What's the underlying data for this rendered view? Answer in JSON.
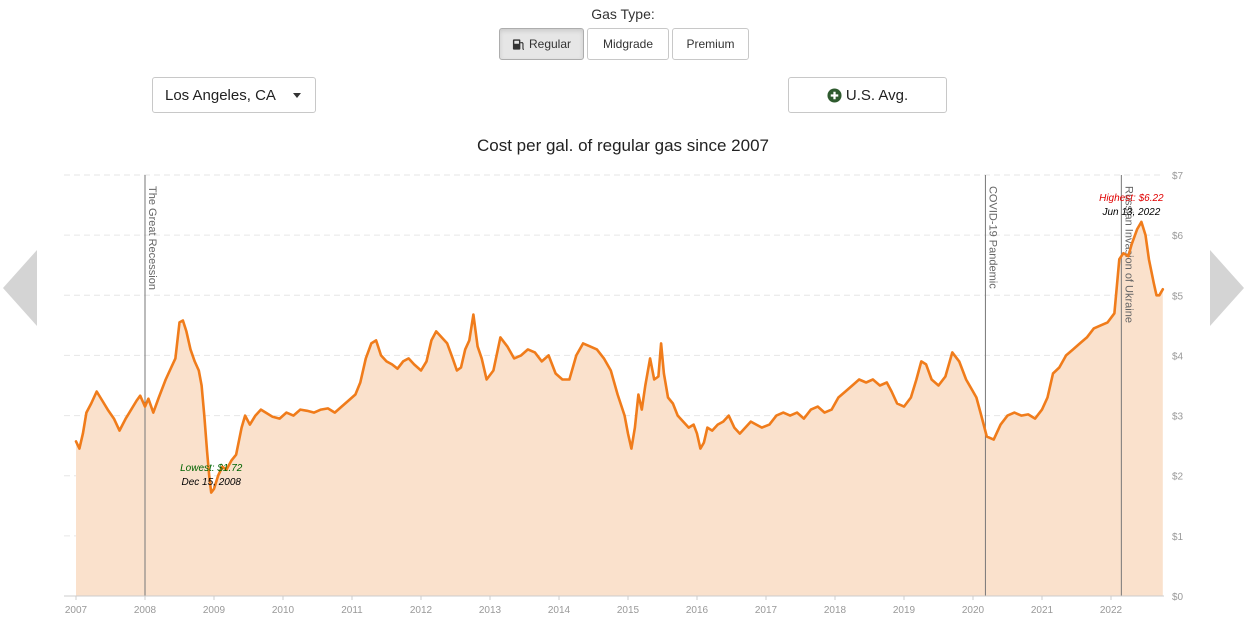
{
  "gas_type": {
    "label": "Gas Type:",
    "options": [
      "Regular",
      "Midgrade",
      "Premium"
    ],
    "selected": "Regular"
  },
  "location": {
    "selected": "Los Angeles, CA"
  },
  "compare_button": {
    "label": "U.S. Avg."
  },
  "icons": {
    "fuel": "gas-pump-icon",
    "plus": "plus-circle-icon",
    "prev": "arrow-left-icon",
    "next": "arrow-right-icon"
  },
  "colors": {
    "line": "#f07c1b",
    "fill": "#fae1cc",
    "highest": "#e00000",
    "lowest": "#006400",
    "plus_icon": "#2e5a2e"
  },
  "chart_data": {
    "type": "area",
    "title": "Cost per gal. of regular gas since 2007",
    "x_ticks": [
      "2007",
      "2008",
      "2009",
      "2010",
      "2011",
      "2012",
      "2013",
      "2014",
      "2015",
      "2016",
      "2017",
      "2018",
      "2019",
      "2020",
      "2021",
      "2022"
    ],
    "y_ticks": [
      "$0",
      "$1",
      "$2",
      "$3",
      "$4",
      "$5",
      "$6",
      "$7"
    ],
    "ylim": [
      0,
      7
    ],
    "xlim": [
      2007.0,
      2022.8
    ],
    "grid": true,
    "series": [
      {
        "points": [
          [
            2007.0,
            2.57
          ],
          [
            2007.05,
            2.45
          ],
          [
            2007.1,
            2.7
          ],
          [
            2007.15,
            3.05
          ],
          [
            2007.22,
            3.2
          ],
          [
            2007.3,
            3.4
          ],
          [
            2007.38,
            3.25
          ],
          [
            2007.46,
            3.1
          ],
          [
            2007.55,
            2.95
          ],
          [
            2007.63,
            2.75
          ],
          [
            2007.72,
            2.95
          ],
          [
            2007.8,
            3.1
          ],
          [
            2007.88,
            3.25
          ],
          [
            2007.93,
            3.33
          ],
          [
            2008.0,
            3.15
          ],
          [
            2008.05,
            3.28
          ],
          [
            2008.12,
            3.05
          ],
          [
            2008.2,
            3.3
          ],
          [
            2008.3,
            3.6
          ],
          [
            2008.38,
            3.8
          ],
          [
            2008.44,
            3.95
          ],
          [
            2008.5,
            4.55
          ],
          [
            2008.55,
            4.58
          ],
          [
            2008.6,
            4.4
          ],
          [
            2008.66,
            4.1
          ],
          [
            2008.72,
            3.9
          ],
          [
            2008.78,
            3.75
          ],
          [
            2008.82,
            3.5
          ],
          [
            2008.86,
            3.0
          ],
          [
            2008.9,
            2.4
          ],
          [
            2008.93,
            2.0
          ],
          [
            2008.96,
            1.72
          ],
          [
            2009.0,
            1.78
          ],
          [
            2009.06,
            2.0
          ],
          [
            2009.12,
            2.15
          ],
          [
            2009.18,
            2.1
          ],
          [
            2009.25,
            2.25
          ],
          [
            2009.32,
            2.35
          ],
          [
            2009.4,
            2.8
          ],
          [
            2009.45,
            3.0
          ],
          [
            2009.52,
            2.85
          ],
          [
            2009.6,
            3.0
          ],
          [
            2009.68,
            3.1
          ],
          [
            2009.75,
            3.05
          ],
          [
            2009.85,
            2.98
          ],
          [
            2009.95,
            2.95
          ],
          [
            2010.05,
            3.05
          ],
          [
            2010.15,
            3.0
          ],
          [
            2010.25,
            3.1
          ],
          [
            2010.35,
            3.08
          ],
          [
            2010.45,
            3.05
          ],
          [
            2010.55,
            3.1
          ],
          [
            2010.65,
            3.12
          ],
          [
            2010.75,
            3.05
          ],
          [
            2010.85,
            3.15
          ],
          [
            2010.95,
            3.25
          ],
          [
            2011.05,
            3.35
          ],
          [
            2011.12,
            3.55
          ],
          [
            2011.2,
            3.95
          ],
          [
            2011.28,
            4.2
          ],
          [
            2011.35,
            4.25
          ],
          [
            2011.42,
            4.0
          ],
          [
            2011.5,
            3.9
          ],
          [
            2011.58,
            3.85
          ],
          [
            2011.66,
            3.78
          ],
          [
            2011.74,
            3.9
          ],
          [
            2011.82,
            3.95
          ],
          [
            2011.9,
            3.85
          ],
          [
            2012.0,
            3.75
          ],
          [
            2012.08,
            3.9
          ],
          [
            2012.15,
            4.25
          ],
          [
            2012.22,
            4.4
          ],
          [
            2012.3,
            4.3
          ],
          [
            2012.38,
            4.2
          ],
          [
            2012.46,
            3.95
          ],
          [
            2012.52,
            3.75
          ],
          [
            2012.58,
            3.8
          ],
          [
            2012.64,
            4.1
          ],
          [
            2012.7,
            4.25
          ],
          [
            2012.76,
            4.68
          ],
          [
            2012.82,
            4.15
          ],
          [
            2012.88,
            3.95
          ],
          [
            2012.95,
            3.6
          ],
          [
            2013.05,
            3.75
          ],
          [
            2013.15,
            4.3
          ],
          [
            2013.25,
            4.15
          ],
          [
            2013.35,
            3.95
          ],
          [
            2013.45,
            4.0
          ],
          [
            2013.55,
            4.1
          ],
          [
            2013.65,
            4.05
          ],
          [
            2013.75,
            3.9
          ],
          [
            2013.85,
            4.0
          ],
          [
            2013.95,
            3.7
          ],
          [
            2014.05,
            3.6
          ],
          [
            2014.15,
            3.6
          ],
          [
            2014.25,
            4.0
          ],
          [
            2014.35,
            4.2
          ],
          [
            2014.45,
            4.15
          ],
          [
            2014.55,
            4.1
          ],
          [
            2014.65,
            3.95
          ],
          [
            2014.75,
            3.75
          ],
          [
            2014.85,
            3.35
          ],
          [
            2014.95,
            3.0
          ],
          [
            2015.0,
            2.7
          ],
          [
            2015.05,
            2.45
          ],
          [
            2015.1,
            2.8
          ],
          [
            2015.15,
            3.35
          ],
          [
            2015.2,
            3.1
          ],
          [
            2015.25,
            3.5
          ],
          [
            2015.32,
            3.95
          ],
          [
            2015.38,
            3.6
          ],
          [
            2015.44,
            3.65
          ],
          [
            2015.48,
            4.2
          ],
          [
            2015.52,
            3.7
          ],
          [
            2015.58,
            3.3
          ],
          [
            2015.65,
            3.2
          ],
          [
            2015.72,
            3.0
          ],
          [
            2015.8,
            2.9
          ],
          [
            2015.88,
            2.8
          ],
          [
            2015.95,
            2.85
          ],
          [
            2016.0,
            2.7
          ],
          [
            2016.05,
            2.45
          ],
          [
            2016.1,
            2.55
          ],
          [
            2016.15,
            2.8
          ],
          [
            2016.22,
            2.75
          ],
          [
            2016.3,
            2.85
          ],
          [
            2016.38,
            2.9
          ],
          [
            2016.46,
            3.0
          ],
          [
            2016.54,
            2.8
          ],
          [
            2016.62,
            2.7
          ],
          [
            2016.7,
            2.8
          ],
          [
            2016.78,
            2.9
          ],
          [
            2016.86,
            2.85
          ],
          [
            2016.94,
            2.8
          ],
          [
            2017.05,
            2.85
          ],
          [
            2017.15,
            3.0
          ],
          [
            2017.25,
            3.05
          ],
          [
            2017.35,
            3.0
          ],
          [
            2017.45,
            3.05
          ],
          [
            2017.55,
            2.95
          ],
          [
            2017.65,
            3.1
          ],
          [
            2017.75,
            3.15
          ],
          [
            2017.85,
            3.05
          ],
          [
            2017.95,
            3.1
          ],
          [
            2018.05,
            3.3
          ],
          [
            2018.15,
            3.4
          ],
          [
            2018.25,
            3.5
          ],
          [
            2018.35,
            3.6
          ],
          [
            2018.45,
            3.55
          ],
          [
            2018.55,
            3.6
          ],
          [
            2018.65,
            3.5
          ],
          [
            2018.75,
            3.55
          ],
          [
            2018.82,
            3.4
          ],
          [
            2018.9,
            3.2
          ],
          [
            2019.0,
            3.15
          ],
          [
            2019.1,
            3.3
          ],
          [
            2019.18,
            3.6
          ],
          [
            2019.25,
            3.9
          ],
          [
            2019.32,
            3.85
          ],
          [
            2019.4,
            3.6
          ],
          [
            2019.5,
            3.5
          ],
          [
            2019.6,
            3.65
          ],
          [
            2019.7,
            4.05
          ],
          [
            2019.8,
            3.9
          ],
          [
            2019.9,
            3.6
          ],
          [
            2020.0,
            3.4
          ],
          [
            2020.05,
            3.3
          ],
          [
            2020.12,
            3.0
          ],
          [
            2020.2,
            2.65
          ],
          [
            2020.3,
            2.6
          ],
          [
            2020.4,
            2.85
          ],
          [
            2020.5,
            3.0
          ],
          [
            2020.6,
            3.05
          ],
          [
            2020.7,
            3.0
          ],
          [
            2020.8,
            3.02
          ],
          [
            2020.9,
            2.95
          ],
          [
            2021.0,
            3.1
          ],
          [
            2021.08,
            3.3
          ],
          [
            2021.16,
            3.7
          ],
          [
            2021.25,
            3.8
          ],
          [
            2021.35,
            4.0
          ],
          [
            2021.45,
            4.1
          ],
          [
            2021.55,
            4.2
          ],
          [
            2021.65,
            4.3
          ],
          [
            2021.75,
            4.45
          ],
          [
            2021.85,
            4.5
          ],
          [
            2021.95,
            4.55
          ],
          [
            2022.05,
            4.7
          ],
          [
            2022.12,
            5.6
          ],
          [
            2022.18,
            5.7
          ],
          [
            2022.25,
            5.65
          ],
          [
            2022.3,
            5.85
          ],
          [
            2022.38,
            6.1
          ],
          [
            2022.44,
            6.22
          ],
          [
            2022.5,
            6.0
          ],
          [
            2022.55,
            5.6
          ],
          [
            2022.62,
            5.2
          ],
          [
            2022.66,
            5.0
          ],
          [
            2022.7,
            5.0
          ],
          [
            2022.75,
            5.1
          ]
        ]
      }
    ],
    "events": [
      {
        "x": 2008.0,
        "label": "The Great Recession"
      },
      {
        "x": 2020.18,
        "label": "COVID-19 Pandemic"
      },
      {
        "x": 2022.15,
        "label": "Russian Invasion of Ukraine"
      }
    ],
    "annotations": {
      "lowest": {
        "x": 2008.96,
        "value": 1.72,
        "label": "Lowest: $1.72",
        "date": "Dec 15, 2008"
      },
      "highest": {
        "x": 2022.44,
        "value": 6.22,
        "label": "Highest: $6.22",
        "date": "Jun 13, 2022"
      }
    }
  }
}
